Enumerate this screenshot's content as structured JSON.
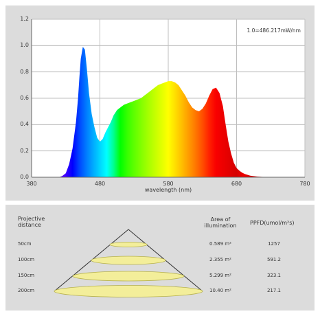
{
  "chart_data": {
    "type": "area",
    "annotation": "1.0=486.217mW/nm",
    "xlabel": "wavelength  (nm)",
    "ylabel": "",
    "x_ticks": [
      380,
      480,
      580,
      680,
      780
    ],
    "y_ticks": [
      "0.0",
      "0.2",
      "0.4",
      "0.6",
      "0.8",
      "1.0",
      "1.2"
    ],
    "xlim": [
      380,
      780
    ],
    "ylim": [
      0,
      1.2
    ],
    "grid": true,
    "series": [
      {
        "x": [
          380,
          390,
          400,
          410,
          420,
          425,
          430,
          435,
          440,
          445,
          448,
          450,
          452,
          455,
          458,
          461,
          464,
          468,
          472,
          476,
          480,
          484,
          488,
          492,
          496,
          500,
          505,
          510,
          515,
          520,
          525,
          530,
          535,
          540,
          545,
          550,
          555,
          560,
          565,
          570,
          575,
          580,
          585,
          590,
          595,
          600,
          605,
          610,
          615,
          620,
          625,
          630,
          635,
          640,
          645,
          650,
          655,
          660,
          664,
          668,
          672,
          676,
          680,
          684,
          688,
          692,
          696,
          700,
          710,
          720,
          730,
          740,
          750,
          760,
          770,
          780
        ],
        "values": [
          0,
          0,
          0,
          0,
          0,
          0.01,
          0.03,
          0.1,
          0.22,
          0.42,
          0.6,
          0.76,
          0.9,
          0.99,
          0.97,
          0.82,
          0.64,
          0.48,
          0.38,
          0.3,
          0.27,
          0.29,
          0.34,
          0.38,
          0.42,
          0.47,
          0.51,
          0.53,
          0.55,
          0.56,
          0.57,
          0.58,
          0.59,
          0.6,
          0.62,
          0.64,
          0.66,
          0.68,
          0.7,
          0.71,
          0.72,
          0.73,
          0.73,
          0.72,
          0.7,
          0.66,
          0.62,
          0.57,
          0.53,
          0.51,
          0.5,
          0.52,
          0.56,
          0.62,
          0.67,
          0.68,
          0.64,
          0.54,
          0.4,
          0.27,
          0.18,
          0.11,
          0.07,
          0.05,
          0.035,
          0.025,
          0.018,
          0.012,
          0.005,
          0.002,
          0,
          0,
          0,
          0,
          0,
          0
        ]
      }
    ]
  },
  "table": {
    "headers": {
      "distance": [
        "Projective",
        "distance"
      ],
      "area": [
        "Area of",
        "illumination"
      ],
      "ppfd": "PPFD(umol/m²s)"
    },
    "rows": [
      {
        "distance": "50cm",
        "area": "0.589 m²",
        "ppfd": "1257"
      },
      {
        "distance": "100cm",
        "area": "2.355 m²",
        "ppfd": "591.2"
      },
      {
        "distance": "150cm",
        "area": "5.299 m²",
        "ppfd": "323.1"
      },
      {
        "distance": "200cm",
        "area": "10.40 m²",
        "ppfd": "217.1"
      }
    ]
  },
  "colors": {
    "panel": "#dcdcdc",
    "plot": "#ffffff",
    "grid": "#bfbfbf",
    "cone": "#333333",
    "ellipse_fill": "#f3ee9a",
    "ellipse_stroke": "#b6b14d"
  }
}
